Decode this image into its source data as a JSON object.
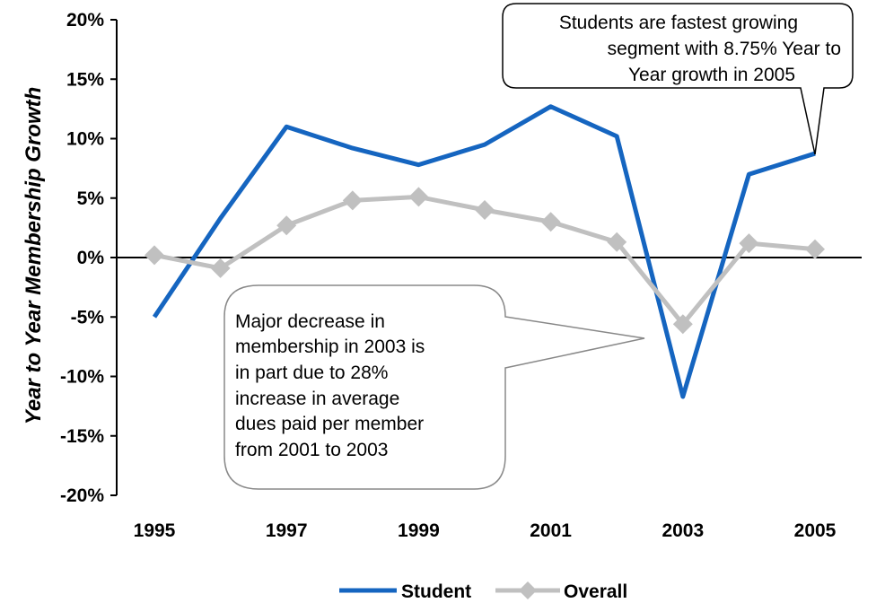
{
  "chart_data": {
    "type": "line",
    "title": "",
    "xlabel": "",
    "ylabel": "Year to Year Membership Growth",
    "x": [
      1995,
      1996,
      1997,
      1998,
      1999,
      2000,
      2001,
      2002,
      2003,
      2004,
      2005
    ],
    "x_tick_labels": [
      "1995",
      "1997",
      "1999",
      "2001",
      "2003",
      "2005"
    ],
    "y_tick_labels": [
      "20%",
      "15%",
      "10%",
      "5%",
      "0%",
      "-5%",
      "-10%",
      "-15%",
      "-20%"
    ],
    "ylim": [
      -20,
      20
    ],
    "y_unit": "%",
    "grid": false,
    "legend_position": "bottom",
    "series": [
      {
        "name": "Student",
        "color": "#1565c0",
        "marker": "none",
        "values": [
          -5.0,
          3.3,
          11.0,
          9.2,
          7.8,
          9.5,
          12.7,
          10.2,
          -11.7,
          7.0,
          8.75
        ]
      },
      {
        "name": "Overall",
        "color": "#c0c0c0",
        "marker": "diamond",
        "values": [
          0.2,
          -0.9,
          2.7,
          4.8,
          5.1,
          4.0,
          3.0,
          1.3,
          -5.6,
          1.2,
          0.7
        ]
      }
    ],
    "annotations": [
      {
        "lines": [
          "Students are fastest growing",
          "segment with 8.75% Year to",
          "Year growth in 2005"
        ],
        "points_to": {
          "x": 2005,
          "series": "Student"
        }
      },
      {
        "lines": [
          "Major decrease in",
          "membership in 2003 is",
          "in part due to 28%",
          "increase in average",
          "dues paid per member",
          "from 2001 to 2003"
        ],
        "points_to": {
          "x": 2003
        }
      }
    ]
  }
}
